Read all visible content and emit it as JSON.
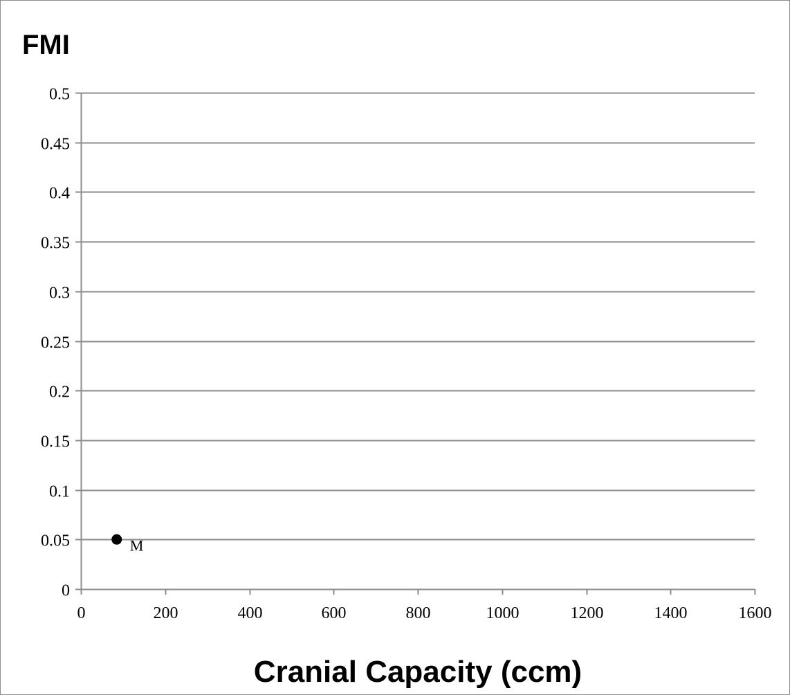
{
  "chart_data": {
    "type": "scatter",
    "title": "",
    "xlabel": "Cranial Capacity (ccm)",
    "ylabel": "FMI",
    "xlim": [
      0,
      1600
    ],
    "ylim": [
      0,
      0.5
    ],
    "x_ticks": [
      "0",
      "200",
      "400",
      "600",
      "800",
      "1000",
      "1200",
      "1400",
      "1600"
    ],
    "y_ticks": [
      "0",
      "0.05",
      "0.1",
      "0.15",
      "0.2",
      "0.25",
      "0.3",
      "0.35",
      "0.4",
      "0.45",
      "0.5"
    ],
    "grid": "horizontal",
    "points": [
      {
        "x": 85,
        "y": 0.05,
        "label": "M"
      }
    ],
    "colors": {
      "grid": "#8c8c8c",
      "point": "#000000",
      "frame": "#8c8c8c"
    }
  }
}
